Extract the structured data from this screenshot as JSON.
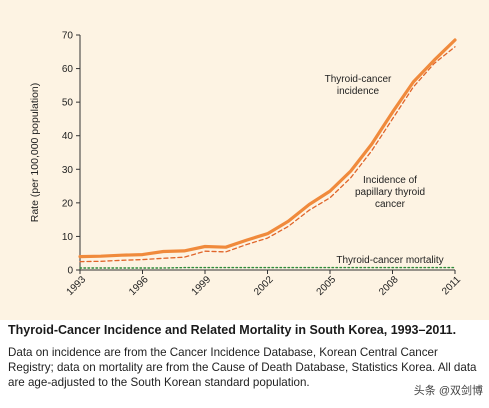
{
  "chart_data": {
    "type": "line",
    "title": "Thyroid-Cancer Incidence and Related Mortality in South Korea, 1993–2011.",
    "xlabel": "",
    "ylabel": "Rate (per 100,000 population)",
    "xlim": [
      1993,
      2011
    ],
    "ylim": [
      0,
      70
    ],
    "xticks": [
      "1993",
      "1996",
      "1999",
      "2002",
      "2005",
      "2008",
      "2011"
    ],
    "yticks": [
      "0",
      "10",
      "20",
      "30",
      "40",
      "50",
      "60",
      "70"
    ],
    "grid": false,
    "x": [
      1993,
      1994,
      1995,
      1996,
      1997,
      1998,
      1999,
      2000,
      2001,
      2002,
      2003,
      2004,
      2005,
      2006,
      2007,
      2008,
      2009,
      2010,
      2011
    ],
    "series": [
      {
        "name": "Thyroid-cancer incidence",
        "label_lines": [
          "Thyroid-cancer",
          "incidence"
        ],
        "style": "solid",
        "color": "#f08a3c",
        "values": [
          4.0,
          4.1,
          4.4,
          4.6,
          5.5,
          5.7,
          7.0,
          6.8,
          8.9,
          10.8,
          14.5,
          19.5,
          23.5,
          29.5,
          37.5,
          47.0,
          56.0,
          62.5,
          68.5
        ]
      },
      {
        "name": "Incidence of papillary thyroid cancer",
        "label_lines": [
          "Incidence of",
          "papillary thyroid",
          "cancer"
        ],
        "style": "dashed",
        "color": "#e0652a",
        "values": [
          2.5,
          2.6,
          2.9,
          3.1,
          3.5,
          3.8,
          5.6,
          5.4,
          7.6,
          9.5,
          13.0,
          17.8,
          21.5,
          27.5,
          35.5,
          45.0,
          54.5,
          61.5,
          66.5
        ]
      },
      {
        "name": "Thyroid-cancer mortality",
        "label_lines": [
          "Thyroid-cancer mortality"
        ],
        "style": "dotted",
        "color": "#2e8b3a",
        "values": [
          0.6,
          0.6,
          0.6,
          0.6,
          0.6,
          0.7,
          0.7,
          0.7,
          0.7,
          0.7,
          0.7,
          0.7,
          0.7,
          0.7,
          0.7,
          0.7,
          0.7,
          0.7,
          0.7
        ]
      }
    ],
    "background": "#fdf3e3"
  },
  "caption": {
    "title": "Thyroid-Cancer Incidence and Related Mortality in South Korea, 1993–2011.",
    "body": "Data on incidence are from the Cancer Incidence Database, Korean Central Cancer Registry; data on mortality are from the Cause of Death Database, Statistics Korea. All data are age-adjusted to the South Korean standard population."
  },
  "watermark": "头条 @双剑博"
}
